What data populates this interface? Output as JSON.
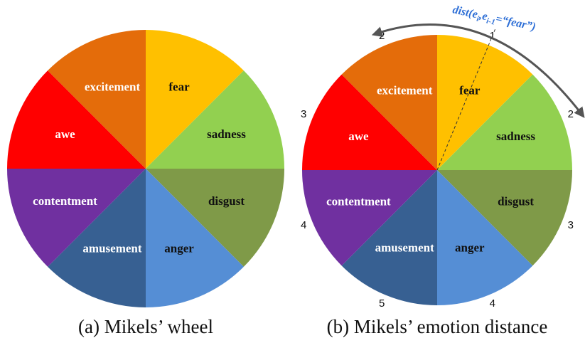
{
  "wheels": [
    {
      "caption": "(a) Mikels’ wheel",
      "segments": [
        {
          "label": "fear",
          "color": "#ffc000",
          "text_color": "#111111"
        },
        {
          "label": "sadness",
          "color": "#92d050",
          "text_color": "#111111"
        },
        {
          "label": "disgust",
          "color": "#7f9a48",
          "text_color": "#111111"
        },
        {
          "label": "anger",
          "color": "#558ed5",
          "text_color": "#111111"
        },
        {
          "label": "amusement",
          "color": "#376092",
          "text_color": "#ffffff"
        },
        {
          "label": "contentment",
          "color": "#7030a0",
          "text_color": "#ffffff"
        },
        {
          "label": "awe",
          "color": "#ff0000",
          "text_color": "#ffffff"
        },
        {
          "label": "excitement",
          "color": "#e46c0a",
          "text_color": "#ffffff"
        }
      ]
    },
    {
      "caption": "(b) Mikels’ emotion distance",
      "segments": [
        {
          "label": "fear",
          "color": "#ffc000",
          "text_color": "#111111",
          "distance": "1"
        },
        {
          "label": "sadness",
          "color": "#92d050",
          "text_color": "#111111",
          "distance": "2"
        },
        {
          "label": "disgust",
          "color": "#7f9a48",
          "text_color": "#111111",
          "distance": "3"
        },
        {
          "label": "anger",
          "color": "#558ed5",
          "text_color": "#111111",
          "distance": "4"
        },
        {
          "label": "amusement",
          "color": "#376092",
          "text_color": "#ffffff",
          "distance": "5"
        },
        {
          "label": "contentment",
          "color": "#7030a0",
          "text_color": "#ffffff",
          "distance": "4"
        },
        {
          "label": "awe",
          "color": "#ff0000",
          "text_color": "#ffffff",
          "distance": "3"
        },
        {
          "label": "excitement",
          "color": "#e46c0a",
          "text_color": "#ffffff",
          "distance": "2"
        }
      ]
    }
  ],
  "annotation": {
    "parts": [
      "dist(e",
      "i",
      ",e",
      "i-1",
      "=“fear”)"
    ]
  }
}
